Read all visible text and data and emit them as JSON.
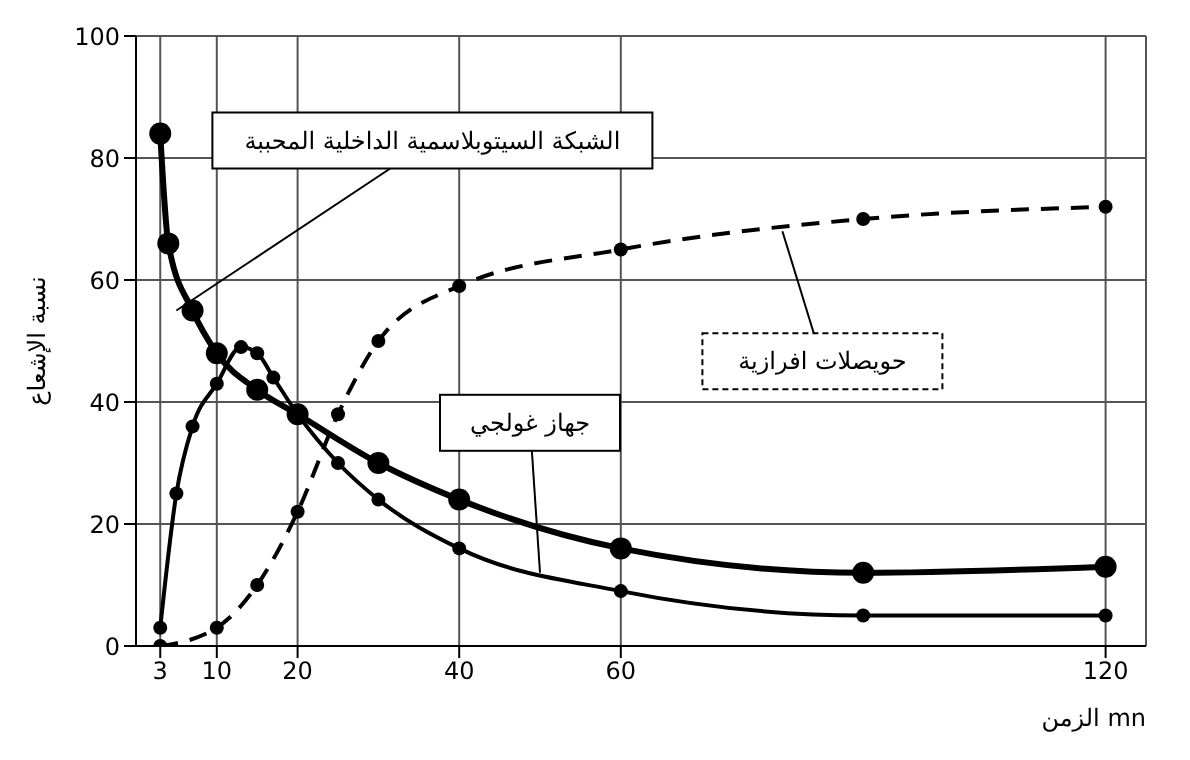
{
  "chart_data": {
    "type": "line",
    "xlabel": "الزمن mn",
    "ylabel": "نسبة الإشعاع",
    "xlim": [
      0,
      125
    ],
    "xticks": [
      3,
      10,
      20,
      40,
      60,
      120
    ],
    "ylim": [
      0,
      100
    ],
    "yticks": [
      0,
      20,
      40,
      60,
      80,
      100
    ],
    "grid": true,
    "marker": "circle",
    "series": [
      {
        "color": "#000000",
        "line_style": "solid",
        "x": [
          3,
          4,
          7,
          10,
          15,
          20,
          30,
          40,
          60,
          90,
          120
        ],
        "values": [
          84,
          66,
          55,
          48,
          42,
          38,
          30,
          24,
          16,
          12,
          13
        ]
      },
      {
        "color": "#000000",
        "line_style": "solid",
        "x": [
          3,
          5,
          7,
          10,
          13,
          15,
          17,
          20,
          25,
          30,
          40,
          60,
          90,
          120
        ],
        "values": [
          3,
          25,
          36,
          43,
          49,
          48,
          44,
          38,
          30,
          24,
          16,
          9,
          5,
          5
        ]
      },
      {
        "color": "#000000",
        "line_style": "dashed",
        "x": [
          3,
          10,
          15,
          20,
          25,
          30,
          40,
          60,
          90,
          120
        ],
        "values": [
          0,
          3,
          10,
          22,
          38,
          50,
          59,
          65,
          70,
          72
        ]
      }
    ],
    "annotations": [
      {
        "text": "الشبكة السيتوبلاسمية الداخلية المحببة",
        "x": 5,
        "y": 55
      },
      {
        "text": "جهاز غولجي",
        "x": 50,
        "y": 12
      },
      {
        "text": "حويصلات افرازية",
        "x": 80,
        "y": 68
      }
    ]
  }
}
